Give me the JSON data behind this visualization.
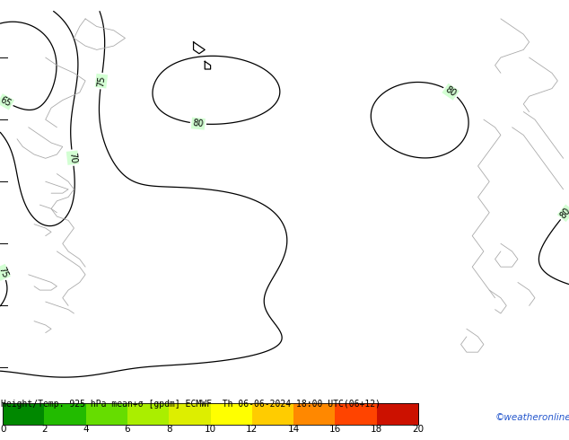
{
  "title": "Height/Temp. 925 hPa mean+σ [gpdm] ECMWF  Th 06-06-2024 18:00 UTC(06+12)",
  "title_fontsize": 7.0,
  "map_bg": "#00ee00",
  "colorbar_values": [
    0,
    2,
    4,
    6,
    8,
    10,
    12,
    14,
    16,
    18,
    20
  ],
  "colorbar_colors": [
    "#008800",
    "#22bb00",
    "#66dd00",
    "#aaee00",
    "#ddee00",
    "#ffff00",
    "#ffcc00",
    "#ff8800",
    "#ff4400",
    "#cc1100",
    "#880022"
  ],
  "colorbar_label_fontsize": 7.5,
  "watermark": "©weatheronline.co.uk",
  "watermark_color": "#2255cc",
  "watermark_fontsize": 7.5,
  "figsize": [
    6.34,
    4.9
  ],
  "dpi": 100,
  "contour_levels": [
    65,
    70,
    75,
    80
  ],
  "contour_color": "black",
  "contour_lw": 0.9,
  "coast_color": "#aaaaaa",
  "coast_lw": 0.6
}
